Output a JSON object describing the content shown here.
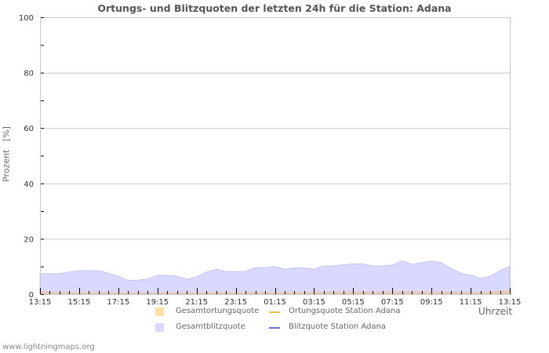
{
  "title": "Ortungs- und Blitzquoten der letzten 24h für die Station: Adana",
  "ylabel": "Prozent   [%]",
  "xlabel": "Uhrzeit",
  "footer": "www.lightningmaps.org",
  "legend": [
    {
      "label": "Gesamtortungsquote",
      "type": "area",
      "color": "#ffe0a8"
    },
    {
      "label": "Ortungsquote Station Adana",
      "type": "line",
      "color": "#f5c04a"
    },
    {
      "label": "Gesamtblitzquote",
      "type": "area",
      "color": "#d9d9ff"
    },
    {
      "label": "Blitzquote Station Adana",
      "type": "line",
      "color": "#6b6bdd"
    }
  ],
  "colors": {
    "grid": "#c8c8c8",
    "blitz_fill": "#d9d9ff",
    "blitz_stroke": "#c4c4f0",
    "ortung_fill": "#e8c8b8",
    "text": "#555555"
  },
  "chart_data": {
    "type": "area",
    "title": "Ortungs- und Blitzquoten der letzten 24h für die Station: Adana",
    "xlabel": "Uhrzeit",
    "ylabel": "Prozent [%]",
    "ylim": [
      0,
      100
    ],
    "yticks": [
      0,
      20,
      40,
      60,
      80,
      100
    ],
    "xticks": [
      "13:15",
      "15:15",
      "17:15",
      "19:15",
      "21:15",
      "23:15",
      "01:15",
      "03:15",
      "05:15",
      "07:15",
      "09:15",
      "11:15",
      "13:15"
    ],
    "grid": true,
    "legend_position": "bottom",
    "x_hours": [
      0,
      0.5,
      1,
      1.5,
      2,
      2.5,
      3,
      3.5,
      4,
      4.5,
      5,
      5.5,
      6,
      6.5,
      7,
      7.5,
      8,
      8.5,
      9,
      9.5,
      10,
      10.5,
      11,
      11.5,
      12,
      12.5,
      13,
      13.5,
      14,
      14.5,
      15,
      15.5,
      16,
      16.5,
      17,
      17.5,
      18,
      18.5,
      19,
      19.5,
      20,
      20.5,
      21,
      21.5,
      22,
      22.5,
      23,
      23.5,
      24
    ],
    "series": [
      {
        "name": "Gesamtblitzquote",
        "values": [
          7.4,
          7.4,
          7.4,
          8.0,
          8.5,
          8.5,
          8.5,
          7.5,
          6.5,
          5.0,
          5.0,
          5.5,
          6.8,
          6.8,
          6.5,
          5.4,
          6.2,
          8.0,
          9.0,
          8.2,
          8.2,
          8.2,
          9.6,
          9.6,
          10.0,
          9.0,
          9.5,
          9.5,
          9.0,
          10.2,
          10.2,
          10.6,
          11.0,
          11.0,
          10.2,
          10.2,
          10.5,
          12.0,
          10.8,
          11.4,
          12.0,
          11.4,
          9.3,
          7.6,
          6.8,
          5.7,
          6.5,
          8.5,
          10.0
        ]
      },
      {
        "name": "Gesamtortungsquote",
        "values": [
          1.0,
          1.0,
          0.8,
          0.8,
          0.8,
          0.8,
          0.7,
          0.7,
          0.6,
          0.6,
          0.6,
          0.6,
          0.7,
          0.7,
          0.6,
          0.6,
          0.6,
          0.6,
          0.7,
          0.7,
          0.7,
          0.7,
          0.7,
          0.7,
          0.7,
          0.7,
          0.7,
          0.8,
          0.8,
          0.9,
          0.9,
          0.9,
          1.0,
          1.0,
          0.9,
          0.9,
          1.0,
          1.0,
          1.0,
          1.0,
          1.0,
          0.9,
          0.9,
          0.8,
          0.8,
          0.8,
          1.0,
          1.2,
          1.4
        ]
      },
      {
        "name": "Ortungsquote Station Adana",
        "values": []
      },
      {
        "name": "Blitzquote Station Adana",
        "values": []
      }
    ]
  }
}
